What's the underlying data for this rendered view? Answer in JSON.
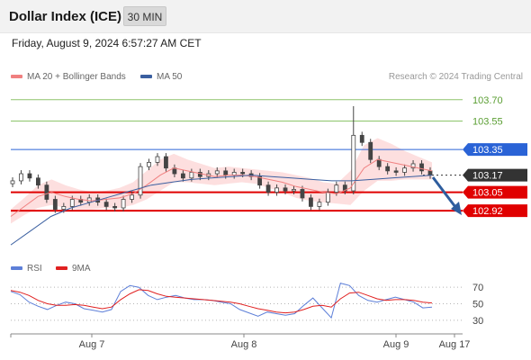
{
  "header": {
    "title": "Dollar Index (ICE)",
    "timeframe_label": "30 MIN",
    "timestamp": "Friday, August 9, 2024 6:57:27 AM CET"
  },
  "legend": {
    "ma20_label": "MA 20 + Bollinger Bands",
    "ma50_label": "MA 50",
    "rsi_label": "RSI",
    "rsi_ma_label": "9MA",
    "credit": "Research © 2024 Trading Central"
  },
  "colors": {
    "ma20": "#f08080",
    "ma50": "#3a5fa0",
    "bollinger_fill": "#fdd9d9",
    "resistance": "#8dc46b",
    "pivot": "#2a63d6",
    "support": "#e00000",
    "last_price": "#333333",
    "candle": "#444444",
    "rsi": "#5d7fd8",
    "rsi_ma": "#e02020",
    "arrow": "#2e5d9e"
  },
  "levels": [
    {
      "name": "resistance-2",
      "value": 103.7,
      "label": "103.70",
      "kind": "resistance"
    },
    {
      "name": "resistance-1",
      "value": 103.55,
      "label": "103.55",
      "kind": "resistance"
    },
    {
      "name": "pivot",
      "value": 103.35,
      "label": "103.35",
      "kind": "pivot"
    },
    {
      "name": "last-price",
      "value": 103.17,
      "label": "103.17",
      "kind": "last"
    },
    {
      "name": "support-1",
      "value": 103.05,
      "label": "103.05",
      "kind": "support"
    },
    {
      "name": "support-2",
      "value": 102.92,
      "label": "102.92",
      "kind": "support"
    }
  ],
  "chart_data": [
    {
      "type": "candlestick",
      "title": "Dollar Index (ICE)",
      "y_range": [
        102.63,
        103.8
      ],
      "x_ticks": [
        "Aug 7",
        "Aug 8",
        "Aug 9",
        "Aug 17"
      ],
      "price_path": [
        103.13,
        103.18,
        103.15,
        103.1,
        103.0,
        102.93,
        102.95,
        103.0,
        102.98,
        103.01,
        102.98,
        102.95,
        102.94,
        103.0,
        103.03,
        103.23,
        103.26,
        103.3,
        103.22,
        103.18,
        103.15,
        103.19,
        103.16,
        103.18,
        103.2,
        103.17,
        103.19,
        103.18,
        103.16,
        103.1,
        103.05,
        103.08,
        103.06,
        103.07,
        103.01,
        102.95,
        102.98,
        103.05,
        103.1,
        103.06,
        103.45,
        103.4,
        103.28,
        103.23,
        103.2,
        103.19,
        103.22,
        103.25,
        103.2,
        103.17
      ],
      "ma20": [
        102.88,
        102.95,
        103.02,
        103.05,
        103.02,
        103.0,
        102.99,
        103.0,
        103.01,
        103.04,
        103.1,
        103.17,
        103.22,
        103.2,
        103.18,
        103.16,
        103.17,
        103.17,
        103.16,
        103.14,
        103.12,
        103.09,
        103.07,
        103.05,
        103.04,
        103.08,
        103.22,
        103.28,
        103.26,
        103.24,
        103.22,
        103.2
      ],
      "ma50": [
        102.68,
        102.78,
        102.88,
        102.94,
        102.98,
        103.02,
        103.06,
        103.1,
        103.12,
        103.14,
        103.15,
        103.16,
        103.17,
        103.16,
        103.15,
        103.14,
        103.13,
        103.13,
        103.14,
        103.15,
        103.16,
        103.17
      ]
    },
    {
      "type": "line",
      "title": "RSI",
      "y_ticks": [
        70,
        50,
        30
      ],
      "y_range": [
        20,
        80
      ],
      "series": [
        {
          "name": "RSI",
          "values": [
            65,
            61,
            52,
            47,
            43,
            48,
            52,
            50,
            44,
            42,
            40,
            43,
            65,
            72,
            70,
            60,
            55,
            58,
            60,
            57,
            55,
            55,
            54,
            52,
            50,
            43,
            39,
            35,
            40,
            38,
            36,
            38,
            48,
            57,
            45,
            33,
            75,
            72,
            60,
            54,
            52,
            55,
            58,
            55,
            52,
            45,
            46
          ]
        },
        {
          "name": "9MA",
          "values": [
            66,
            64,
            60,
            54,
            50,
            48,
            48,
            49,
            48,
            46,
            44,
            46,
            55,
            62,
            67,
            66,
            62,
            59,
            58,
            57,
            56,
            55,
            54,
            53,
            52,
            50,
            47,
            44,
            42,
            40,
            39,
            40,
            43,
            47,
            48,
            46,
            56,
            63,
            64,
            60,
            56,
            54,
            55,
            55,
            54,
            52,
            51
          ]
        }
      ]
    }
  ]
}
